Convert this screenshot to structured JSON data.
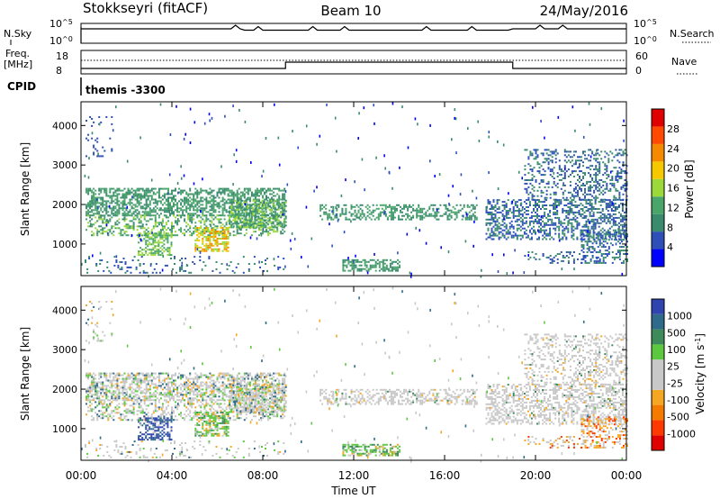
{
  "header": {
    "station": "Stokkseyri (fitACF)",
    "beam": "Beam 10",
    "date": "24/May/2016"
  },
  "strip_labels": {
    "nsky": "N.Sky",
    "nsearch": "N.Search",
    "freq_line1": "Freq.",
    "freq_line2": "[MHz]",
    "nave": "Nave",
    "cpid": "CPID",
    "cpid_name": "themis -3300",
    "nsky_ticks": {
      "top_base": "10",
      "top_exp": "^5",
      "bottom_base": "10",
      "bottom_exp": "^0"
    },
    "freq_ticks": [
      "18",
      "8"
    ],
    "nave_ticks": [
      "60",
      "0"
    ]
  },
  "colors": {
    "power": [
      "#0000ff",
      "#2e4fb8",
      "#3a8a6e",
      "#4aa56a",
      "#9bd83a",
      "#f5c800",
      "#f58a00",
      "#ff4a00",
      "#e00000"
    ],
    "velocity": [
      "#2e45b0",
      "#2f6a8a",
      "#3e8a5a",
      "#5cc840",
      "#c8c8c8",
      "#c8c8c8",
      "#f5a623",
      "#f57a00",
      "#ff3a00",
      "#e00000"
    ],
    "ground": "#bebebe"
  },
  "chart_data": [
    {
      "type": "heatmap",
      "name": "power",
      "ylabel": "Slant Range [km]",
      "colorbar_label": "Power [dB]",
      "colorbar_ticks": [
        "28",
        "24",
        "20",
        "16",
        "12",
        "8",
        "4"
      ],
      "yticks": [
        "1000",
        "2000",
        "3000",
        "4000"
      ],
      "ylim": [
        200,
        4600
      ],
      "xlim_hours": [
        0,
        24
      ]
    },
    {
      "type": "heatmap",
      "name": "velocity",
      "ylabel": "Slant Range [km]",
      "colorbar_label": "Velocity [m s",
      "colorbar_label_sup": "-1",
      "colorbar_label_end": "]",
      "colorbar_ticks": [
        "1000",
        "500",
        "100",
        "25",
        "-25",
        "-100",
        "-500",
        "-1000"
      ],
      "yticks": [
        "1000",
        "2000",
        "3000",
        "4000"
      ],
      "ylim": [
        200,
        4600
      ],
      "xlim_hours": [
        0,
        24
      ]
    }
  ],
  "xaxis": {
    "label": "Time UT",
    "ticks": [
      "00:00",
      "04:00",
      "08:00",
      "12:00",
      "16:00",
      "20:00",
      "00:00"
    ]
  },
  "regions": [
    {
      "t0": 0.2,
      "t1": 9.0,
      "r0": 1700,
      "r1": 2400,
      "p": 0.55,
      "pw": [
        8,
        16
      ],
      "vel": "mixed"
    },
    {
      "t0": 0.2,
      "t1": 9.0,
      "r0": 1200,
      "r1": 1700,
      "p": 0.35,
      "pw": [
        8,
        20
      ],
      "vel": "mixed"
    },
    {
      "t0": 2.5,
      "t1": 4.0,
      "r0": 700,
      "r1": 1300,
      "p": 0.5,
      "pw": [
        12,
        20
      ],
      "vel": "blue"
    },
    {
      "t0": 5.0,
      "t1": 6.5,
      "r0": 800,
      "r1": 1400,
      "p": 0.6,
      "pw": [
        16,
        28
      ],
      "vel": "green"
    },
    {
      "t0": 0.0,
      "t1": 9.0,
      "r0": 250,
      "r1": 700,
      "p": 0.12,
      "pw": [
        4,
        12
      ],
      "vel": "mixed"
    },
    {
      "t0": 0.2,
      "t1": 1.5,
      "r0": 3200,
      "r1": 4200,
      "p": 0.08,
      "pw": [
        4,
        8
      ],
      "vel": "mixed"
    },
    {
      "t0": 6.5,
      "t1": 9.0,
      "r0": 1400,
      "r1": 2100,
      "p": 0.55,
      "pw": [
        8,
        20
      ],
      "vel": "mixed"
    },
    {
      "t0": 10.5,
      "t1": 17.5,
      "r0": 1600,
      "r1": 2000,
      "p": 0.45,
      "pw": [
        8,
        16
      ],
      "vel": "gray"
    },
    {
      "t0": 11.5,
      "t1": 14.0,
      "r0": 300,
      "r1": 600,
      "p": 0.5,
      "pw": [
        8,
        16
      ],
      "vel": "green"
    },
    {
      "t0": 17.8,
      "t1": 24.0,
      "r0": 1100,
      "r1": 2100,
      "p": 0.45,
      "pw": [
        4,
        12
      ],
      "vel": "gray"
    },
    {
      "t0": 19.5,
      "t1": 24.0,
      "r0": 2100,
      "r1": 3400,
      "p": 0.28,
      "pw": [
        4,
        12
      ],
      "vel": "gray"
    },
    {
      "t0": 22.0,
      "t1": 24.0,
      "r0": 500,
      "r1": 1300,
      "p": 0.4,
      "pw": [
        4,
        12
      ],
      "vel": "orange"
    },
    {
      "t0": 19.5,
      "t1": 22.0,
      "r0": 500,
      "r1": 800,
      "p": 0.2,
      "pw": [
        4,
        12
      ],
      "vel": "orange"
    }
  ]
}
